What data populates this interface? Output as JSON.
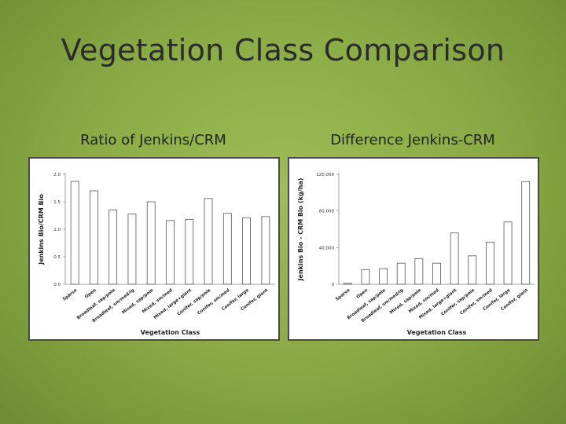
{
  "slide": {
    "title": "Vegetation Class Comparison"
  },
  "colors": {
    "bar_fill": "#ffffff",
    "bar_stroke": "#555555",
    "background": "#8fb04a"
  },
  "chart_data": [
    {
      "id": "ratio",
      "type": "bar",
      "heading": "Ratio of Jenkins/CRM",
      "xlabel": "Vegetation Class",
      "ylabel": "Jenkins Bio/CRM Bio",
      "ylim": [
        0,
        2.0
      ],
      "yticks": [
        "0.0",
        "0.5",
        "1.0",
        "1.5",
        "2.0"
      ],
      "ytick_values": [
        0,
        0.5,
        1.0,
        1.5,
        2.0
      ],
      "grid": false,
      "categories": [
        "Sparse",
        "Open",
        "Broadleaf, sap/pole",
        "Broadleaf, sm/med/lg",
        "Mixed, sap/pole",
        "Mixed, sm/med",
        "Mixed, large+giant",
        "Conifer, sap/pole",
        "Conifer, sm/med",
        "Conifer, large",
        "Conifer, giant"
      ],
      "values": [
        1.87,
        1.7,
        1.35,
        1.28,
        1.5,
        1.16,
        1.18,
        1.56,
        1.29,
        1.21,
        1.23
      ]
    },
    {
      "id": "difference",
      "type": "bar",
      "heading": "Difference Jenkins-CRM",
      "xlabel": "Vegetation Class",
      "ylabel": "Jenkins Bio - CRM Bio (kg/ha)",
      "ylim": [
        0,
        120000
      ],
      "yticks": [
        "0",
        "40,000",
        "80,000",
        "120,000"
      ],
      "ytick_values": [
        0,
        40000,
        80000,
        120000
      ],
      "grid": false,
      "categories": [
        "Sparse",
        "Open",
        "Broadleaf, sap/pole",
        "Broadleaf, sm/med/lg",
        "Mixed, sap/pole",
        "Mixed, sm/med",
        "Mixed, large+giant",
        "Conifer, sap/pole",
        "Conifer, sm/med",
        "Conifer, large",
        "Conifer, giant"
      ],
      "values": [
        1000,
        16000,
        17000,
        23000,
        28000,
        23000,
        56000,
        31000,
        46000,
        68000,
        112000
      ]
    }
  ]
}
